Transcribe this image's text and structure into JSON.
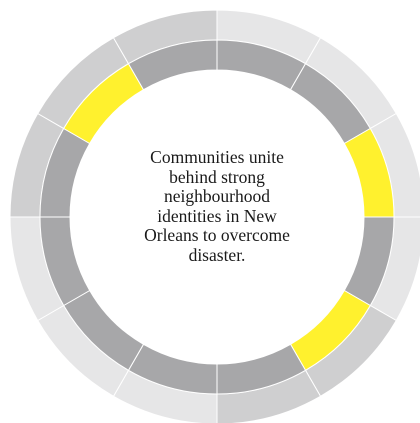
{
  "center_text": {
    "lines": [
      "Communities unite",
      "behind strong",
      "neighbourhood",
      "identities in New",
      "Orleans to overcome",
      "disaster."
    ]
  },
  "colors": {
    "outer_light": "#e6e6e7",
    "outer_mid": "#cfcfd0",
    "inner_dark": "#a7a7a9",
    "highlight": "#fff12e",
    "divider": "#ffffff",
    "text": "#1a1a1a"
  },
  "rings": {
    "outer": [
      {
        "name": "outer-seg-1",
        "tone": "outer_light"
      },
      {
        "name": "outer-seg-2",
        "tone": "outer_light"
      },
      {
        "name": "outer-seg-3",
        "tone": "outer_light"
      },
      {
        "name": "outer-seg-4",
        "tone": "outer_light"
      },
      {
        "name": "outer-seg-5",
        "tone": "outer_mid"
      },
      {
        "name": "outer-seg-6",
        "tone": "outer_mid"
      },
      {
        "name": "outer-seg-7",
        "tone": "outer_light"
      },
      {
        "name": "outer-seg-8",
        "tone": "outer_light"
      },
      {
        "name": "outer-seg-9",
        "tone": "outer_light"
      },
      {
        "name": "outer-seg-10",
        "tone": "outer_mid"
      },
      {
        "name": "outer-seg-11",
        "tone": "outer_mid"
      },
      {
        "name": "outer-seg-12",
        "tone": "outer_mid"
      }
    ],
    "inner": [
      {
        "name": "inner-seg-1",
        "tone": "inner_dark"
      },
      {
        "name": "inner-seg-2",
        "tone": "inner_dark"
      },
      {
        "name": "inner-seg-3",
        "tone": "highlight"
      },
      {
        "name": "inner-seg-4",
        "tone": "inner_dark"
      },
      {
        "name": "inner-seg-5",
        "tone": "highlight"
      },
      {
        "name": "inner-seg-6",
        "tone": "inner_dark"
      },
      {
        "name": "inner-seg-7",
        "tone": "inner_dark"
      },
      {
        "name": "inner-seg-8",
        "tone": "inner_dark"
      },
      {
        "name": "inner-seg-9",
        "tone": "inner_dark"
      },
      {
        "name": "inner-seg-10",
        "tone": "inner_dark"
      },
      {
        "name": "inner-seg-11",
        "tone": "highlight"
      },
      {
        "name": "inner-seg-12",
        "tone": "inner_dark"
      }
    ]
  }
}
